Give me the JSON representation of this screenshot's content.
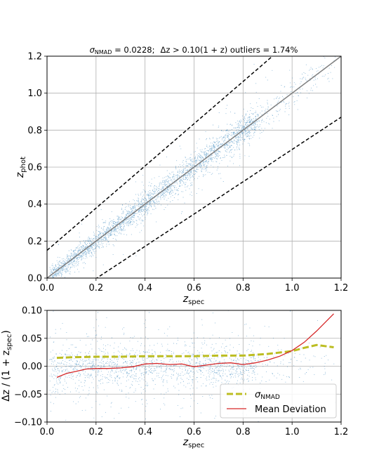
{
  "title": {
    "sigma_symbol": "σ",
    "sigma_sub": "NMAD",
    "sigma_value_text": " = 0.0228;",
    "outlier_text": "Δz > 0.10(1 + z) outliers = 1.74%"
  },
  "chart_data": [
    {
      "type": "scatter",
      "name": "photo-z vs spec-z",
      "xlabel": "z",
      "xlabel_sub": "spec",
      "ylabel": "z",
      "ylabel_sub": "phot",
      "xlim": [
        0.0,
        1.2
      ],
      "ylim": [
        0.0,
        1.2
      ],
      "xticks": [
        "0.0",
        "0.2",
        "0.4",
        "0.6",
        "0.8",
        "1.0",
        "1.2"
      ],
      "yticks": [
        "0.0",
        "0.2",
        "0.4",
        "0.6",
        "0.8",
        "1.0",
        "1.2"
      ],
      "grid": true,
      "point_color": "#1f77b4",
      "lines": [
        {
          "kind": "one-to-one",
          "color": "#808080",
          "style": "solid",
          "x": [
            0.0,
            1.2
          ],
          "y": [
            0.0,
            1.2
          ]
        },
        {
          "kind": "outlier-upper",
          "color": "#000000",
          "style": "dashed",
          "x": [
            0.0,
            0.92
          ],
          "y": [
            0.15,
            1.2
          ]
        },
        {
          "kind": "outlier-lower",
          "color": "#000000",
          "style": "dashed",
          "x": [
            0.1,
            1.2
          ],
          "y": [
            -0.09,
            0.87
          ]
        }
      ],
      "density_ridge": {
        "x_range": [
          0.0,
          1.2
        ],
        "dense_until": 0.85,
        "scatter_sigma": 0.0228
      }
    },
    {
      "type": "scatter",
      "name": "residuals",
      "xlabel": "z",
      "xlabel_sub": "spec",
      "ylabel": "Δz / (1 + z",
      "ylabel_sub": "spec",
      "ylabel_close": ")",
      "xlim": [
        0.0,
        1.2
      ],
      "ylim": [
        -0.1,
        0.1
      ],
      "xticks": [
        "0.0",
        "0.2",
        "0.4",
        "0.6",
        "0.8",
        "1.0",
        "1.2"
      ],
      "yticks": [
        "−0.10",
        "−0.05",
        "0.00",
        "0.05",
        "0.10"
      ],
      "grid": true,
      "point_color": "#1f77b4",
      "legend_position": "lower-right",
      "series": [
        {
          "name": "σ",
          "name_sub": "NMAD",
          "color": "#bcbd22",
          "style": "dashed",
          "x": [
            0.04,
            0.1,
            0.2,
            0.3,
            0.4,
            0.5,
            0.6,
            0.7,
            0.8,
            0.9,
            1.0,
            1.05,
            1.1,
            1.17
          ],
          "y": [
            0.015,
            0.016,
            0.017,
            0.017,
            0.018,
            0.018,
            0.018,
            0.019,
            0.019,
            0.022,
            0.027,
            0.033,
            0.038,
            0.034
          ]
        },
        {
          "name": "Mean Deviation",
          "color": "#d62728",
          "style": "solid",
          "x": [
            0.04,
            0.08,
            0.12,
            0.16,
            0.2,
            0.25,
            0.3,
            0.35,
            0.4,
            0.45,
            0.5,
            0.55,
            0.6,
            0.65,
            0.7,
            0.75,
            0.8,
            0.85,
            0.9,
            0.95,
            1.0,
            1.05,
            1.1,
            1.17
          ],
          "y": [
            -0.02,
            -0.013,
            -0.009,
            -0.005,
            -0.004,
            -0.004,
            -0.003,
            -0.001,
            0.004,
            0.005,
            0.003,
            0.004,
            -0.001,
            0.002,
            0.005,
            0.006,
            0.003,
            0.006,
            0.011,
            0.018,
            0.028,
            0.043,
            0.063,
            0.094
          ]
        }
      ]
    }
  ]
}
